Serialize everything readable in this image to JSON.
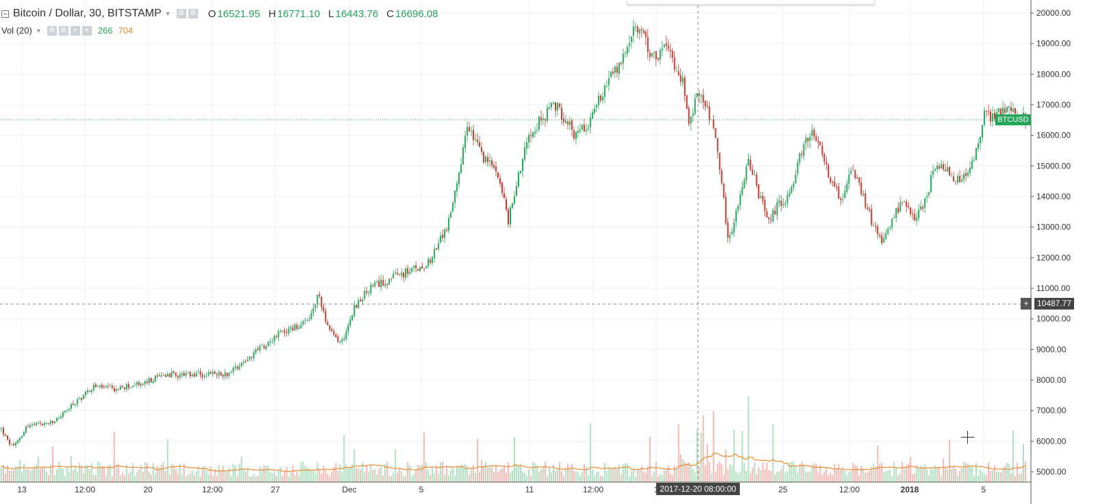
{
  "header": {
    "symbol_title": "Bitcoin / Dollar, 30, BITSTAMP",
    "open_label": "O",
    "open_value": "16521.95",
    "high_label": "H",
    "high_value": "16771.10",
    "low_label": "L",
    "low_value": "16443.76",
    "close_label": "C",
    "close_value": "16696.08",
    "vol_label": "Vol (20)",
    "vol_value": "266",
    "vol_ma_value": "704"
  },
  "tags": {
    "price_tag": "BTCUSD",
    "crosshair_price": "10487.77",
    "crosshair_time": "2017-12-20 08:00:00",
    "plus": "+"
  },
  "colors": {
    "up": "#26a65b",
    "down": "#c0392b",
    "volume_ma": "#f28a2e",
    "grid": "#eef1f4"
  },
  "chart_data": {
    "type": "candlestick",
    "title": "Bitcoin / Dollar, 30, BITSTAMP",
    "ylim": [
      4800,
      20000
    ],
    "y_ticks": [
      "20000.00",
      "19000.00",
      "18000.00",
      "17000.00",
      "16000.00",
      "15000.00",
      "14000.00",
      "13000.00",
      "12000.00",
      "11000.00",
      "10000.00",
      "9000.00",
      "8000.00",
      "7000.00",
      "6000.00",
      "5000.00"
    ],
    "x_ticks": [
      "13",
      "12:00",
      "20",
      "12:00",
      "27",
      "Dec",
      "5",
      "11",
      "12:00",
      "1",
      "25",
      "12:00",
      "2018",
      "5"
    ],
    "bold_x_ticks": [
      "2018"
    ],
    "last_price": 16521.95,
    "crosshair": {
      "price": 10487.77,
      "time": "2017-12-20 08:00:00"
    },
    "close_path": [
      {
        "x": 0.0,
        "close": 6400
      },
      {
        "x": 0.006,
        "close": 6000
      },
      {
        "x": 0.012,
        "close": 5800
      },
      {
        "x": 0.025,
        "close": 6500
      },
      {
        "x": 0.05,
        "close": 6600
      },
      {
        "x": 0.07,
        "close": 7200
      },
      {
        "x": 0.09,
        "close": 7800
      },
      {
        "x": 0.11,
        "close": 7700
      },
      {
        "x": 0.14,
        "close": 7900
      },
      {
        "x": 0.16,
        "close": 8200
      },
      {
        "x": 0.18,
        "close": 8150
      },
      {
        "x": 0.22,
        "close": 8200
      },
      {
        "x": 0.24,
        "close": 8700
      },
      {
        "x": 0.27,
        "close": 9500
      },
      {
        "x": 0.3,
        "close": 9900
      },
      {
        "x": 0.31,
        "close": 10800
      },
      {
        "x": 0.32,
        "close": 9600
      },
      {
        "x": 0.332,
        "close": 9200
      },
      {
        "x": 0.345,
        "close": 10400
      },
      {
        "x": 0.36,
        "close": 11000
      },
      {
        "x": 0.385,
        "close": 11400
      },
      {
        "x": 0.41,
        "close": 11700
      },
      {
        "x": 0.42,
        "close": 12000
      },
      {
        "x": 0.435,
        "close": 13000
      },
      {
        "x": 0.445,
        "close": 14300
      },
      {
        "x": 0.455,
        "close": 16300
      },
      {
        "x": 0.47,
        "close": 15300
      },
      {
        "x": 0.485,
        "close": 14800
      },
      {
        "x": 0.495,
        "close": 13200
      },
      {
        "x": 0.505,
        "close": 14700
      },
      {
        "x": 0.515,
        "close": 16100
      },
      {
        "x": 0.53,
        "close": 16600
      },
      {
        "x": 0.54,
        "close": 17000
      },
      {
        "x": 0.55,
        "close": 16600
      },
      {
        "x": 0.56,
        "close": 16000
      },
      {
        "x": 0.575,
        "close": 16500
      },
      {
        "x": 0.59,
        "close": 17700
      },
      {
        "x": 0.605,
        "close": 18300
      },
      {
        "x": 0.615,
        "close": 19300
      },
      {
        "x": 0.625,
        "close": 19500
      },
      {
        "x": 0.635,
        "close": 18500
      },
      {
        "x": 0.65,
        "close": 18900
      },
      {
        "x": 0.665,
        "close": 17800
      },
      {
        "x": 0.672,
        "close": 16400
      },
      {
        "x": 0.68,
        "close": 17500
      },
      {
        "x": 0.69,
        "close": 16800
      },
      {
        "x": 0.7,
        "close": 15400
      },
      {
        "x": 0.71,
        "close": 12500
      },
      {
        "x": 0.72,
        "close": 13900
      },
      {
        "x": 0.73,
        "close": 15200
      },
      {
        "x": 0.74,
        "close": 14000
      },
      {
        "x": 0.75,
        "close": 13200
      },
      {
        "x": 0.76,
        "close": 13800
      },
      {
        "x": 0.77,
        "close": 14000
      },
      {
        "x": 0.78,
        "close": 15300
      },
      {
        "x": 0.79,
        "close": 16100
      },
      {
        "x": 0.8,
        "close": 15700
      },
      {
        "x": 0.81,
        "close": 14500
      },
      {
        "x": 0.82,
        "close": 13900
      },
      {
        "x": 0.83,
        "close": 14900
      },
      {
        "x": 0.84,
        "close": 14100
      },
      {
        "x": 0.85,
        "close": 13200
      },
      {
        "x": 0.86,
        "close": 12400
      },
      {
        "x": 0.87,
        "close": 13300
      },
      {
        "x": 0.88,
        "close": 13800
      },
      {
        "x": 0.89,
        "close": 13300
      },
      {
        "x": 0.9,
        "close": 13600
      },
      {
        "x": 0.91,
        "close": 14800
      },
      {
        "x": 0.92,
        "close": 15000
      },
      {
        "x": 0.93,
        "close": 14500
      },
      {
        "x": 0.94,
        "close": 14600
      },
      {
        "x": 0.95,
        "close": 15200
      },
      {
        "x": 0.96,
        "close": 16700
      },
      {
        "x": 0.97,
        "close": 16600
      },
      {
        "x": 0.98,
        "close": 16900
      },
      {
        "x": 1.0,
        "close": 16550
      }
    ]
  }
}
